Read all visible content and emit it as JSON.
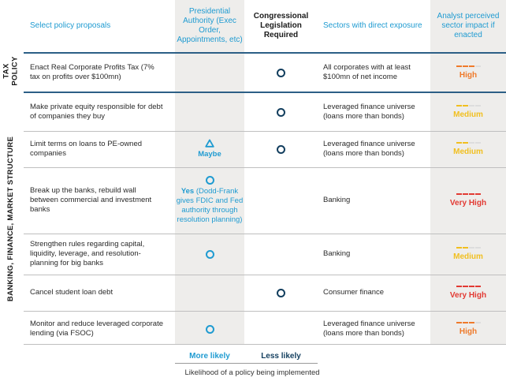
{
  "header": {
    "proposals": "Select policy proposals",
    "presidential": "Presidential Authority (Exec Order, Appointments, etc)",
    "congressional": "Congressional Legislation Required",
    "sectors": "Sectors with direct exposure",
    "impact": "Analyst perceived sector impact if enacted"
  },
  "groups": {
    "tax": "TAX POLICY",
    "banking": "BANKING, FINANCE, MARKET STRUCTURE"
  },
  "rows": [
    {
      "policy": "Enact Real Corporate Profits Tax (7% tax on profits over $100mn)",
      "pres_marker": "none",
      "pres_note_bold": "",
      "pres_note": "",
      "congress": true,
      "sector": "All corporates with at least $100mn of net income",
      "impact": "High",
      "impact_color": "#ef7a2a",
      "impact_level": 3
    },
    {
      "policy": "Make private equity responsible for debt of companies they buy",
      "pres_marker": "none",
      "pres_note_bold": "",
      "pres_note": "",
      "congress": true,
      "sector": "Leveraged finance universe (loans more than bonds)",
      "impact": "Medium",
      "impact_color": "#f1bf1f",
      "impact_level": 2
    },
    {
      "policy": "Limit terms on loans to PE-owned companies",
      "pres_marker": "triangle",
      "pres_note_bold": "Maybe",
      "pres_note": "",
      "congress": true,
      "sector": "Leveraged finance universe (loans more than bonds)",
      "impact": "Medium",
      "impact_color": "#f1bf1f",
      "impact_level": 2
    },
    {
      "policy": "Break up the banks, rebuild wall between commercial and investment banks",
      "pres_marker": "circle",
      "pres_note_bold": "Yes",
      "pres_note": " (Dodd-Frank gives FDIC and Fed authority through resolution planning)",
      "congress": false,
      "sector": "Banking",
      "impact": "Very High",
      "impact_color": "#e23a33",
      "impact_level": 4
    },
    {
      "policy": "Strengthen rules regarding capital, liquidity, leverage, and resolution-planning for big banks",
      "pres_marker": "circle",
      "pres_note_bold": "",
      "pres_note": "",
      "congress": false,
      "sector": "Banking",
      "impact": "Medium",
      "impact_color": "#f1bf1f",
      "impact_level": 2
    },
    {
      "policy": "Cancel student loan debt",
      "pres_marker": "none",
      "pres_note_bold": "",
      "pres_note": "",
      "congress": true,
      "sector": "Consumer finance",
      "impact": "Very High",
      "impact_color": "#e23a33",
      "impact_level": 4
    },
    {
      "policy": "Monitor and reduce leveraged corporate lending (via FSOC)",
      "pres_marker": "circle",
      "pres_note_bold": "",
      "pres_note": "",
      "congress": false,
      "sector": "Leveraged finance universe (loans more than bonds)",
      "impact": "High",
      "impact_color": "#ef7a2a",
      "impact_level": 3
    }
  ],
  "footer": {
    "more_likely": "More likely",
    "less_likely": "Less likely",
    "caption": "Likelihood of a policy being implemented"
  }
}
